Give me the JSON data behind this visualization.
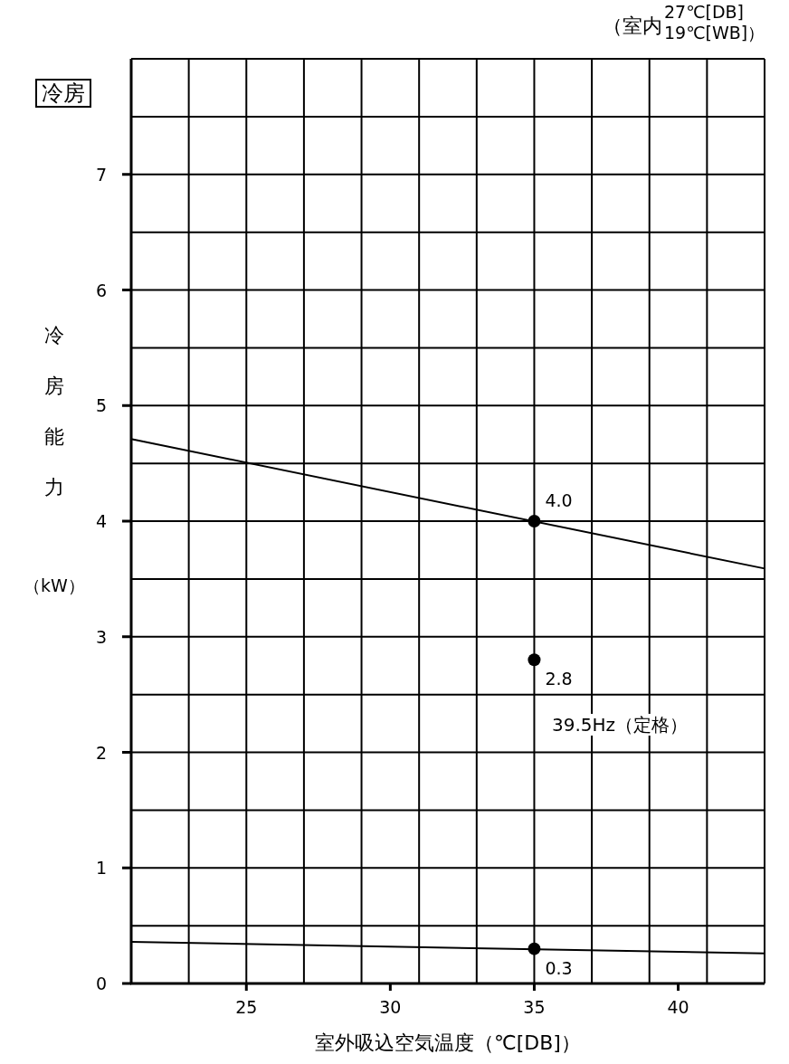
{
  "chart_data": {
    "type": "line",
    "title": "冷房",
    "xlabel": "室外吸込空気温度（℃[DB]）",
    "ylabel": "冷房能力（kW）",
    "annotations": [
      "（室内",
      "27℃[DB]",
      "19℃[WB]）",
      "39.5Hz（定格）"
    ],
    "xlim": [
      21,
      43
    ],
    "ylim": [
      0,
      8
    ],
    "xticks": [
      {
        "value": 23,
        "label": null
      },
      25,
      {
        "value": 25,
        "label": null
      },
      {
        "value": 27,
        "label": null
      },
      {
        "value": 29,
        "label": null
      },
      30,
      {
        "value": 31,
        "label": null
      },
      {
        "value": 33,
        "label": null
      },
      35,
      {
        "value": 35,
        "label": null
      },
      {
        "value": 37,
        "label": null
      },
      {
        "value": 39,
        "label": null
      },
      40,
      {
        "value": 41,
        "label": null
      },
      {
        "value": 43,
        "label": null
      }
    ],
    "yticks": [
      0,
      {
        "value": 0.5,
        "label": null
      },
      1,
      {
        "value": 1,
        "label": null
      },
      {
        "value": 1.5,
        "label": null
      },
      2,
      {
        "value": 2,
        "label": null
      },
      {
        "value": 2.5,
        "label": null
      },
      3,
      {
        "value": 3,
        "label": null
      },
      {
        "value": 3.5,
        "label": null
      },
      4,
      {
        "value": 4,
        "label": null
      },
      {
        "value": 4.5,
        "label": null
      },
      5,
      {
        "value": 5,
        "label": null
      },
      {
        "value": 5.5,
        "label": null
      },
      6,
      {
        "value": 6,
        "label": null
      },
      {
        "value": 6.5,
        "label": null
      },
      7,
      {
        "value": 7,
        "label": null
      },
      {
        "value": 7.5,
        "label": null
      },
      {
        "value": 8,
        "label": null
      }
    ],
    "grid": true,
    "series": [
      {
        "color": "#000000",
        "x": [
          21,
          43
        ],
        "values": [
          4.71,
          3.59
        ]
      },
      {
        "color": "#000000",
        "x": [
          21,
          43
        ],
        "values": [
          0.36,
          0.26
        ]
      },
      {
        "type": "scatter",
        "color": "#000000",
        "marker": "circle",
        "x": [
          35,
          35,
          35
        ],
        "values": [
          4.0,
          2.8,
          0.3
        ],
        "value_labels": [
          "4.0",
          "2.8",
          "0.3"
        ]
      }
    ]
  }
}
